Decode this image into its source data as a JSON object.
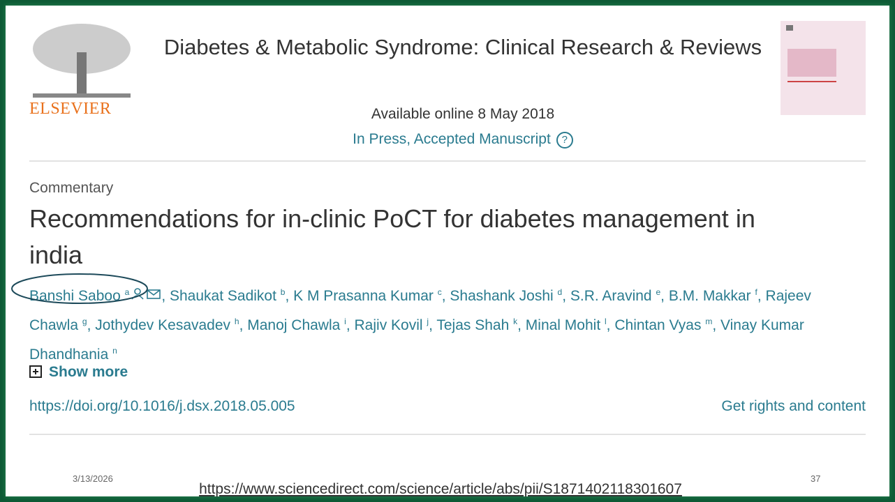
{
  "journal": {
    "publisher": "ELSEVIER",
    "title": "Diabetes & Metabolic Syndrome: Clinical Research & Reviews",
    "available": "Available online 8 May 2018",
    "status": "In Press, Accepted Manuscript",
    "help": "?"
  },
  "article": {
    "type": "Commentary",
    "title": "Recommendations for in-clinic PoCT for diabetes management in india",
    "authors": [
      {
        "name": "Banshi Saboo",
        "sup": "a"
      },
      {
        "name": "Shaukat Sadikot",
        "sup": "b"
      },
      {
        "name": "K M Prasanna Kumar",
        "sup": "c"
      },
      {
        "name": "Shashank Joshi",
        "sup": "d"
      },
      {
        "name": "S.R. Aravind",
        "sup": "e"
      },
      {
        "name": "B.M. Makkar",
        "sup": "f"
      },
      {
        "name": "Rajeev Chawla",
        "sup": "g"
      },
      {
        "name": "Jothydev Kesavadev",
        "sup": "h"
      },
      {
        "name": "Manoj Chawla",
        "sup": "i"
      },
      {
        "name": "Rajiv Kovil",
        "sup": "j"
      },
      {
        "name": "Tejas Shah",
        "sup": "k"
      },
      {
        "name": "Minal Mohit",
        "sup": "l"
      },
      {
        "name": "Chintan Vyas",
        "sup": "m"
      },
      {
        "name": "Vinay Kumar Dhandhania",
        "sup": "n"
      }
    ],
    "show_more": "Show more",
    "doi": "https://doi.org/10.1016/j.dsx.2018.05.005",
    "rights": "Get rights and content"
  },
  "slide": {
    "date": "3/13/2026",
    "url": "https://www.sciencedirect.com/science/article/abs/pii/S1871402118301607",
    "page": "37"
  }
}
